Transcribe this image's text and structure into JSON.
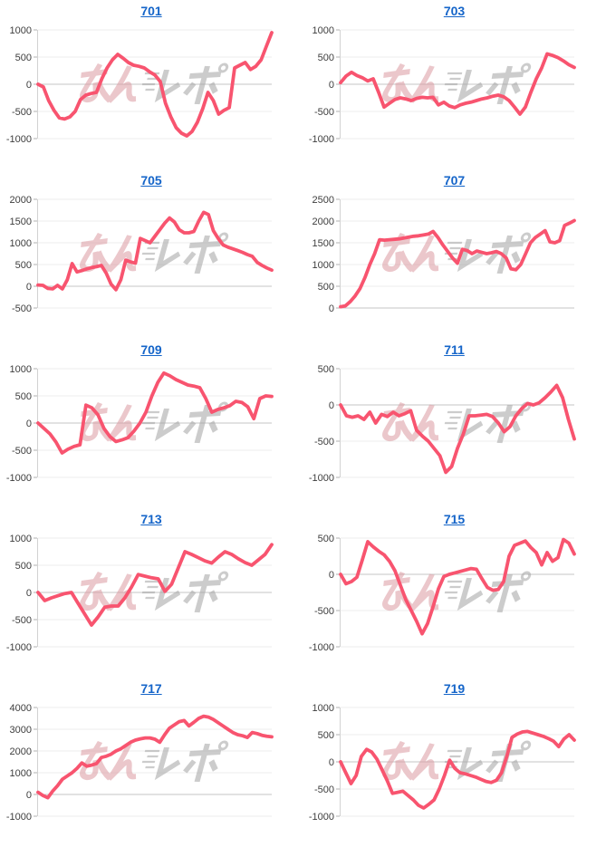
{
  "page": {
    "description": "Grid of 10 daily slump line graphs for slot machines, machine numbers as blue links",
    "background": "#ffffff"
  },
  "style": {
    "link_color": "#1565c9",
    "line_color": "#f8546f",
    "grid_color": "#ececec",
    "zero_line_color": "#c6c6c6",
    "axis_color": "#d2d2d2",
    "tick_mark_color": "#b0b0b0",
    "tick_label_color": "#3d3d3d"
  },
  "watermark": {
    "text": "みんレポ",
    "part1": "みん",
    "part2": "レポ",
    "color1": "#dc9ba2",
    "color2": "#a3a3a3",
    "opacity": 0.55
  },
  "chart_data": [
    {
      "type": "line",
      "title": "701",
      "ylim": [
        -1000,
        1000
      ],
      "y_ticks": [
        1000,
        500,
        0,
        -500,
        -1000
      ],
      "grid": "horizontal",
      "legend": "none",
      "values": [
        0,
        -50,
        -300,
        -480,
        -620,
        -640,
        -600,
        -500,
        -280,
        -200,
        -170,
        -150,
        100,
        300,
        450,
        550,
        480,
        400,
        350,
        330,
        300,
        230,
        170,
        50,
        -350,
        -600,
        -800,
        -900,
        -950,
        -870,
        -700,
        -450,
        -150,
        -300,
        -550,
        -480,
        -430,
        300,
        350,
        400,
        270,
        330,
        450,
        700,
        950
      ]
    },
    {
      "type": "line",
      "title": "703",
      "ylim": [
        -1000,
        1000
      ],
      "y_ticks": [
        1000,
        500,
        0,
        -500,
        -1000
      ],
      "grid": "horizontal",
      "legend": "none",
      "values": [
        30,
        150,
        220,
        160,
        120,
        60,
        100,
        -150,
        -420,
        -350,
        -280,
        -250,
        -270,
        -300,
        -260,
        -240,
        -250,
        -240,
        -380,
        -330,
        -400,
        -430,
        -380,
        -350,
        -330,
        -300,
        -270,
        -250,
        -220,
        -200,
        -230,
        -300,
        -420,
        -550,
        -420,
        -150,
        100,
        300,
        560,
        530,
        490,
        430,
        360,
        310
      ]
    },
    {
      "type": "line",
      "title": "705",
      "ylim": [
        -500,
        2000
      ],
      "y_ticks": [
        2000,
        1500,
        1000,
        500,
        0,
        -500
      ],
      "grid": "horizontal",
      "legend": "none",
      "values": [
        30,
        20,
        -50,
        -60,
        20,
        -60,
        150,
        520,
        330,
        360,
        400,
        430,
        450,
        480,
        300,
        50,
        -80,
        150,
        600,
        560,
        530,
        1100,
        1050,
        1000,
        1150,
        1300,
        1450,
        1570,
        1480,
        1300,
        1230,
        1230,
        1260,
        1500,
        1700,
        1650,
        1280,
        1100,
        950,
        900,
        860,
        820,
        780,
        730,
        690,
        550,
        480,
        420,
        370
      ]
    },
    {
      "type": "line",
      "title": "707",
      "ylim": [
        0,
        2500
      ],
      "y_ticks": [
        2500,
        2000,
        1500,
        1000,
        500,
        0
      ],
      "grid": "horizontal",
      "legend": "none",
      "values": [
        30,
        50,
        150,
        280,
        450,
        700,
        1000,
        1250,
        1570,
        1560,
        1570,
        1580,
        1590,
        1610,
        1630,
        1650,
        1660,
        1680,
        1700,
        1760,
        1620,
        1450,
        1300,
        1150,
        1030,
        1350,
        1320,
        1250,
        1310,
        1280,
        1250,
        1270,
        1300,
        1250,
        1150,
        900,
        880,
        1000,
        1250,
        1500,
        1620,
        1700,
        1780,
        1520,
        1500,
        1550,
        1900,
        1950,
        2010
      ]
    },
    {
      "type": "line",
      "title": "709",
      "ylim": [
        -1000,
        1000
      ],
      "y_ticks": [
        1000,
        500,
        0,
        -500,
        -1000
      ],
      "grid": "horizontal",
      "legend": "none",
      "values": [
        0,
        -100,
        -200,
        -350,
        -550,
        -480,
        -430,
        -400,
        330,
        280,
        150,
        -100,
        -250,
        -340,
        -310,
        -270,
        -150,
        0,
        200,
        500,
        750,
        920,
        870,
        800,
        750,
        700,
        680,
        650,
        450,
        200,
        250,
        280,
        320,
        400,
        380,
        300,
        80,
        450,
        500,
        490
      ]
    },
    {
      "type": "line",
      "title": "711",
      "ylim": [
        -1000,
        500
      ],
      "y_ticks": [
        500,
        0,
        -500,
        -1000
      ],
      "grid": "horizontal",
      "legend": "none",
      "values": [
        0,
        -150,
        -170,
        -150,
        -200,
        -100,
        -250,
        -130,
        -160,
        -100,
        -150,
        -120,
        -80,
        -350,
        -430,
        -500,
        -600,
        -700,
        -930,
        -850,
        -600,
        -400,
        -150,
        -150,
        -140,
        -130,
        -160,
        -250,
        -370,
        -300,
        -150,
        -50,
        20,
        0,
        30,
        100,
        180,
        270,
        100,
        -200,
        -470
      ]
    },
    {
      "type": "line",
      "title": "713",
      "ylim": [
        -1000,
        1000
      ],
      "y_ticks": [
        1000,
        500,
        0,
        -500,
        -1000
      ],
      "grid": "horizontal",
      "legend": "none",
      "values": [
        0,
        -150,
        -100,
        -60,
        -20,
        0,
        -200,
        -400,
        -600,
        -450,
        -270,
        -250,
        -250,
        -100,
        100,
        330,
        300,
        270,
        250,
        20,
        150,
        450,
        750,
        700,
        640,
        580,
        540,
        650,
        750,
        700,
        620,
        550,
        500,
        600,
        700,
        880
      ]
    },
    {
      "type": "line",
      "title": "715",
      "ylim": [
        -1000,
        500
      ],
      "y_ticks": [
        500,
        0,
        -500,
        -1000
      ],
      "grid": "horizontal",
      "legend": "none",
      "values": [
        0,
        -130,
        -100,
        -40,
        200,
        450,
        380,
        320,
        270,
        180,
        50,
        -150,
        -350,
        -500,
        -650,
        -820,
        -680,
        -450,
        -200,
        -30,
        0,
        20,
        40,
        60,
        80,
        70,
        -60,
        -180,
        -220,
        -210,
        -100,
        250,
        400,
        430,
        460,
        370,
        300,
        130,
        300,
        180,
        230,
        480,
        430,
        280
      ]
    },
    {
      "type": "line",
      "title": "717",
      "ylim": [
        -1000,
        4000
      ],
      "y_ticks": [
        4000,
        3000,
        2000,
        1000,
        0,
        -1000
      ],
      "grid": "horizontal",
      "legend": "none",
      "values": [
        100,
        -50,
        -150,
        150,
        400,
        700,
        850,
        1000,
        1200,
        1450,
        1300,
        1350,
        1420,
        1700,
        1760,
        1850,
        2000,
        2100,
        2250,
        2400,
        2500,
        2560,
        2600,
        2600,
        2540,
        2400,
        2750,
        3050,
        3200,
        3350,
        3400,
        3150,
        3320,
        3500,
        3600,
        3560,
        3450,
        3300,
        3150,
        3000,
        2850,
        2750,
        2700,
        2620,
        2850,
        2800,
        2720,
        2680,
        2650
      ]
    },
    {
      "type": "line",
      "title": "719",
      "ylim": [
        -1000,
        1000
      ],
      "y_ticks": [
        1000,
        500,
        0,
        -500,
        -1000
      ],
      "grid": "horizontal",
      "legend": "none",
      "values": [
        0,
        -200,
        -400,
        -250,
        100,
        230,
        180,
        50,
        -150,
        -350,
        -580,
        -560,
        -540,
        -620,
        -700,
        -800,
        -850,
        -780,
        -700,
        -500,
        -250,
        30,
        -120,
        -200,
        -220,
        -250,
        -280,
        -320,
        -360,
        -380,
        -340,
        -200,
        100,
        450,
        510,
        550,
        560,
        530,
        500,
        470,
        430,
        380,
        280,
        420,
        500,
        400
      ]
    }
  ]
}
